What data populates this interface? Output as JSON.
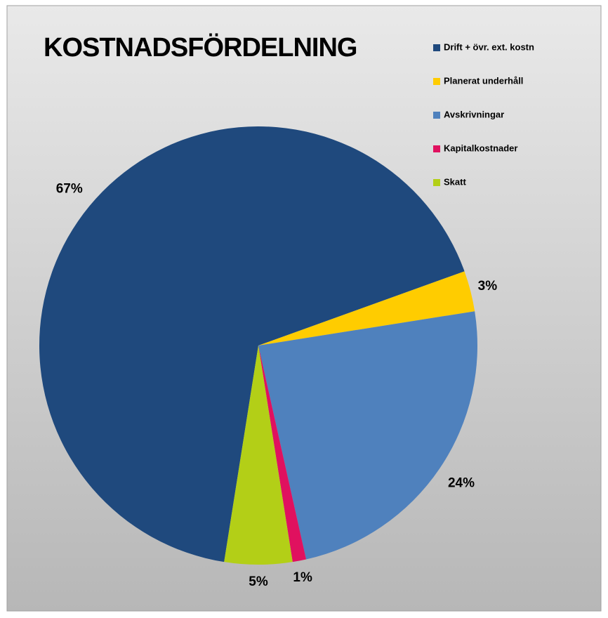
{
  "chart_data": {
    "type": "pie",
    "title": "KOSTNADSFÖRDELNING",
    "categories": [
      "Drift + övr. ext. kostn",
      "Planerat underhåll",
      "Avskrivningar",
      "Kapitalkostnader",
      "Skatt"
    ],
    "values": [
      67,
      3,
      24,
      1,
      5
    ],
    "value_labels": [
      "67%",
      "3%",
      "24%",
      "1%",
      "5%"
    ],
    "colors": [
      "#1f497d",
      "#ffcc00",
      "#4f81bd",
      "#e0115f",
      "#b3cf17"
    ],
    "legend": "right"
  }
}
